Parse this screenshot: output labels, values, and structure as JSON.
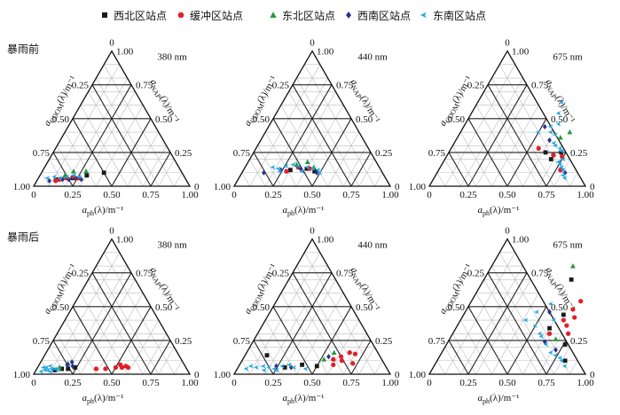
{
  "legend": [
    {
      "name": "西北区站点",
      "symbol": "square",
      "color": "#1a1a1a"
    },
    {
      "name": "缓冲区站点",
      "symbol": "circle",
      "color": "#e0202a"
    },
    {
      "name": "东北区站点",
      "symbol": "triangle",
      "color": "#1f9a3a"
    },
    {
      "name": "西南区站点",
      "symbol": "diamond",
      "color": "#2b2f8f"
    },
    {
      "name": "东南区站点",
      "symbol": "wedge",
      "color": "#20a8e0"
    }
  ],
  "conditions": [
    "暴雨前",
    "暴雨后"
  ],
  "axis_labels": {
    "left": "a<sub>CDOM</sub>(λ)/m⁻¹",
    "right": "a<sub>NAP</sub>(λ)/m⁻¹",
    "bottom": "a<sub>ph</sub>(λ)/m⁻¹"
  },
  "ticks": {
    "bottom": [
      "0",
      "0.25",
      "0.50",
      "0.75",
      "1.00"
    ],
    "left": [
      "1.00",
      "0.75",
      "0.50",
      "0.25",
      "0"
    ],
    "right": [
      "1.00",
      "0.75",
      "0.50",
      "0.25",
      "0"
    ]
  },
  "chart_data": [
    {
      "type": "scatter",
      "subtype": "ternary",
      "condition": "暴雨前",
      "wavelength": "380 nm",
      "coords": [
        "a_ph",
        "a_NAP"
      ],
      "series": [
        {
          "name": "西北区站点",
          "points": [
            [
              0.4,
              0.1
            ],
            [
              0.3,
              0.08
            ],
            [
              0.22,
              0.06
            ],
            [
              0.12,
              0.05
            ]
          ]
        },
        {
          "name": "缓冲区站点",
          "points": [
            [
              0.14,
              0.05
            ],
            [
              0.18,
              0.06
            ],
            [
              0.22,
              0.07
            ],
            [
              0.12,
              0.04
            ],
            [
              0.26,
              0.06
            ]
          ]
        },
        {
          "name": "东北区站点",
          "points": [
            [
              0.28,
              0.11
            ],
            [
              0.16,
              0.08
            ],
            [
              0.2,
              0.11
            ]
          ]
        },
        {
          "name": "西南区站点",
          "points": [
            [
              0.08,
              0.04
            ],
            [
              0.16,
              0.05
            ],
            [
              0.2,
              0.05
            ],
            [
              0.24,
              0.06
            ],
            [
              0.28,
              0.05
            ]
          ]
        },
        {
          "name": "东南区站点",
          "points": [
            [
              0.06,
              0.06
            ],
            [
              0.1,
              0.07
            ],
            [
              0.18,
              0.07
            ],
            [
              0.22,
              0.08
            ],
            [
              0.26,
              0.07
            ],
            [
              0.14,
              0.06
            ]
          ]
        }
      ]
    },
    {
      "type": "scatter",
      "subtype": "ternary",
      "condition": "暴雨前",
      "wavelength": "440 nm",
      "coords": [
        "a_ph",
        "a_NAP"
      ],
      "series": [
        {
          "name": "西北区站点",
          "points": [
            [
              0.3,
              0.12
            ],
            [
              0.4,
              0.13
            ],
            [
              0.46,
              0.11
            ]
          ]
        },
        {
          "name": "缓冲区站点",
          "points": [
            [
              0.34,
              0.14
            ],
            [
              0.42,
              0.13
            ],
            [
              0.28,
              0.11
            ]
          ]
        },
        {
          "name": "东北区站点",
          "points": [
            [
              0.38,
              0.18
            ],
            [
              0.44,
              0.14
            ],
            [
              0.32,
              0.16
            ]
          ]
        },
        {
          "name": "西南区站点",
          "points": [
            [
              0.14,
              0.1
            ],
            [
              0.24,
              0.12
            ],
            [
              0.36,
              0.13
            ],
            [
              0.48,
              0.1
            ]
          ]
        },
        {
          "name": "东南区站点",
          "points": [
            [
              0.22,
              0.13
            ],
            [
              0.26,
              0.15
            ],
            [
              0.3,
              0.16
            ],
            [
              0.34,
              0.15
            ],
            [
              0.4,
              0.14
            ],
            [
              0.44,
              0.13
            ],
            [
              0.48,
              0.12
            ],
            [
              0.24,
              0.11
            ],
            [
              0.18,
              0.14
            ],
            [
              0.38,
              0.11
            ],
            [
              0.5,
              0.1
            ]
          ]
        }
      ]
    },
    {
      "type": "scatter",
      "subtype": "ternary",
      "condition": "暴雨前",
      "wavelength": "675 nm",
      "coords": [
        "a_ph",
        "a_NAP"
      ],
      "series": [
        {
          "name": "西北区站点",
          "points": [
            [
              0.62,
              0.25
            ],
            [
              0.72,
              0.25
            ],
            [
              0.68,
              0.2
            ]
          ]
        },
        {
          "name": "缓冲区站点",
          "points": [
            [
              0.74,
              0.22
            ],
            [
              0.56,
              0.28
            ],
            [
              0.68,
              0.23
            ],
            [
              0.78,
              0.12
            ]
          ]
        },
        {
          "name": "东北区站点",
          "points": [
            [
              0.7,
              0.4
            ],
            [
              0.66,
              0.36
            ]
          ]
        },
        {
          "name": "西南区站点",
          "points": [
            [
              0.52,
              0.44
            ],
            [
              0.6,
              0.34
            ],
            [
              0.82,
              0.1
            ]
          ]
        },
        {
          "name": "东南区站点",
          "points": [
            [
              0.54,
              0.62
            ],
            [
              0.56,
              0.54
            ],
            [
              0.6,
              0.46
            ],
            [
              0.58,
              0.4
            ],
            [
              0.62,
              0.38
            ],
            [
              0.64,
              0.32
            ],
            [
              0.66,
              0.3
            ],
            [
              0.7,
              0.28
            ],
            [
              0.72,
              0.26
            ],
            [
              0.74,
              0.18
            ],
            [
              0.76,
              0.16
            ],
            [
              0.78,
              0.14
            ],
            [
              0.8,
              0.12
            ],
            [
              0.82,
              0.08
            ],
            [
              0.84,
              0.06
            ],
            [
              0.76,
              0.2
            ],
            [
              0.56,
              0.44
            ],
            [
              0.5,
              0.4
            ]
          ]
        }
      ]
    },
    {
      "type": "scatter",
      "subtype": "ternary",
      "condition": "暴雨后",
      "wavelength": "380 nm",
      "coords": [
        "a_ph",
        "a_NAP"
      ],
      "series": [
        {
          "name": "西北区站点",
          "points": [
            [
              0.16,
              0.04
            ],
            [
              0.2,
              0.04
            ],
            [
              0.12,
              0.03
            ],
            [
              0.24,
              0.05
            ]
          ]
        },
        {
          "name": "缓冲区站点",
          "points": [
            [
              0.44,
              0.04
            ],
            [
              0.5,
              0.05
            ],
            [
              0.54,
              0.05
            ],
            [
              0.56,
              0.06
            ],
            [
              0.58,
              0.05
            ],
            [
              0.52,
              0.07
            ],
            [
              0.38,
              0.04
            ]
          ]
        },
        {
          "name": "东北区站点",
          "points": [
            [
              0.18,
              0.08
            ],
            [
              0.14,
              0.05
            ]
          ]
        },
        {
          "name": "西南区站点",
          "points": [
            [
              0.22,
              0.06
            ],
            [
              0.18,
              0.07
            ],
            [
              0.2,
              0.09
            ]
          ]
        },
        {
          "name": "东南区站点",
          "points": [
            [
              0.04,
              0.02
            ],
            [
              0.06,
              0.03
            ],
            [
              0.08,
              0.03
            ],
            [
              0.1,
              0.04
            ],
            [
              0.12,
              0.04
            ],
            [
              0.06,
              0.05
            ],
            [
              0.1,
              0.02
            ],
            [
              0.14,
              0.03
            ],
            [
              0.08,
              0.06
            ],
            [
              0.04,
              0.05
            ]
          ]
        }
      ]
    },
    {
      "type": "scatter",
      "subtype": "ternary",
      "condition": "暴雨后",
      "wavelength": "440 nm",
      "coords": [
        "a_ph",
        "a_NAP"
      ],
      "series": [
        {
          "name": "西北区站点",
          "points": [
            [
              0.14,
              0.14
            ],
            [
              0.5,
              0.06
            ],
            [
              0.3,
              0.05
            ],
            [
              0.4,
              0.07
            ]
          ]
        },
        {
          "name": "缓冲区站点",
          "points": [
            [
              0.58,
              0.11
            ],
            [
              0.62,
              0.13
            ],
            [
              0.66,
              0.16
            ],
            [
              0.7,
              0.15
            ],
            [
              0.72,
              0.08
            ],
            [
              0.6,
              0.07
            ],
            [
              0.64,
              0.1
            ]
          ]
        },
        {
          "name": "东北区站点",
          "points": [
            [
              0.56,
              0.16
            ],
            [
              0.52,
              0.11
            ]
          ]
        },
        {
          "name": "西南区站点",
          "points": [
            [
              0.24,
              0.06
            ],
            [
              0.34,
              0.05
            ],
            [
              0.54,
              0.13
            ]
          ]
        },
        {
          "name": "东南区站点",
          "points": [
            [
              0.08,
              0.06
            ],
            [
              0.12,
              0.05
            ],
            [
              0.16,
              0.06
            ],
            [
              0.2,
              0.05
            ],
            [
              0.24,
              0.04
            ],
            [
              0.28,
              0.06
            ],
            [
              0.32,
              0.07
            ],
            [
              0.36,
              0.05
            ],
            [
              0.44,
              0.04
            ],
            [
              0.06,
              0.04
            ],
            [
              0.18,
              0.03
            ],
            [
              0.26,
              0.03
            ]
          ]
        }
      ]
    },
    {
      "type": "scatter",
      "subtype": "ternary",
      "condition": "暴雨后",
      "wavelength": "675 nm",
      "coords": [
        "a_ph",
        "a_NAP"
      ],
      "series": [
        {
          "name": "西北区站点",
          "points": [
            [
              0.56,
              0.7
            ],
            [
              0.64,
              0.44
            ],
            [
              0.76,
              0.22
            ],
            [
              0.82,
              0.1
            ],
            [
              0.6,
              0.34
            ]
          ]
        },
        {
          "name": "缓冲区站点",
          "points": [
            [
              0.68,
              0.48
            ],
            [
              0.72,
              0.42
            ],
            [
              0.66,
              0.4
            ],
            [
              0.7,
              0.36
            ],
            [
              0.74,
              0.3
            ],
            [
              0.7,
              0.54
            ],
            [
              0.62,
              0.3
            ]
          ]
        },
        {
          "name": "东北区站点",
          "points": [
            [
              0.52,
              0.8
            ],
            [
              0.68,
              0.26
            ]
          ]
        },
        {
          "name": "西南区站点",
          "points": [
            [
              0.62,
              0.24
            ],
            [
              0.54,
              0.46
            ],
            [
              0.72,
              0.18
            ]
          ]
        },
        {
          "name": "东南区站点",
          "points": [
            [
              0.42,
              0.4
            ],
            [
              0.46,
              0.46
            ],
            [
              0.5,
              0.36
            ],
            [
              0.56,
              0.3
            ],
            [
              0.58,
              0.28
            ],
            [
              0.64,
              0.22
            ],
            [
              0.7,
              0.16
            ],
            [
              0.74,
              0.14
            ],
            [
              0.78,
              0.12
            ],
            [
              0.8,
              0.1
            ],
            [
              0.84,
              0.06
            ],
            [
              0.6,
              0.4
            ],
            [
              0.52,
              0.52
            ]
          ]
        }
      ]
    }
  ]
}
